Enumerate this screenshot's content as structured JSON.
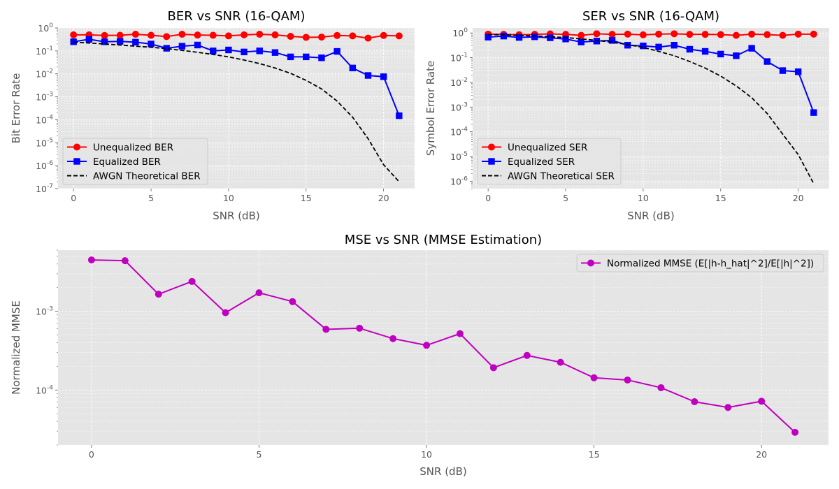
{
  "chart_data": [
    {
      "type": "line",
      "title": "BER vs SNR (16-QAM)",
      "xlabel": "SNR (dB)",
      "ylabel": "Bit Error Rate",
      "yscale": "log",
      "xlim": [
        -1,
        22
      ],
      "ylim": [
        1e-07,
        1
      ],
      "xticks": [
        0,
        5,
        10,
        15,
        20
      ],
      "yticks": [
        1e-07,
        1e-06,
        1e-05,
        0.0001,
        0.001,
        0.01,
        0.1,
        1
      ],
      "legend_position": "lower-left",
      "grid": true,
      "series": [
        {
          "name": "Unequalized BER",
          "color": "#ff0000",
          "style": "solid",
          "marker": "circle",
          "x": [
            0,
            1,
            2,
            3,
            4,
            5,
            6,
            7,
            8,
            9,
            10,
            11,
            12,
            13,
            14,
            15,
            16,
            17,
            18,
            19,
            20,
            21
          ],
          "y": [
            0.5,
            0.5,
            0.47,
            0.48,
            0.53,
            0.48,
            0.42,
            0.53,
            0.49,
            0.48,
            0.45,
            0.5,
            0.53,
            0.5,
            0.43,
            0.39,
            0.4,
            0.47,
            0.45,
            0.36,
            0.47,
            0.45
          ]
        },
        {
          "name": "Equalized BER",
          "color": "#0000ff",
          "style": "solid",
          "marker": "square",
          "x": [
            0,
            1,
            2,
            3,
            4,
            5,
            6,
            7,
            8,
            9,
            10,
            11,
            12,
            13,
            14,
            15,
            16,
            17,
            18,
            19,
            20,
            21
          ],
          "y": [
            0.25,
            0.32,
            0.25,
            0.26,
            0.24,
            0.2,
            0.13,
            0.16,
            0.18,
            0.1,
            0.11,
            0.09,
            0.1,
            0.085,
            0.055,
            0.055,
            0.05,
            0.095,
            0.018,
            0.0085,
            0.0075,
            0.00015
          ]
        },
        {
          "name": "AWGN Theoretical BER",
          "color": "#000000",
          "style": "dashed",
          "marker": "none",
          "x": [
            0,
            1,
            2,
            3,
            4,
            5,
            6,
            7,
            8,
            9,
            10,
            11,
            12,
            13,
            14,
            15,
            16,
            17,
            18,
            19,
            20,
            21
          ],
          "y": [
            0.24,
            0.22,
            0.2,
            0.18,
            0.16,
            0.145,
            0.125,
            0.105,
            0.087,
            0.07,
            0.055,
            0.04,
            0.028,
            0.018,
            0.0105,
            0.0052,
            0.0022,
            0.00065,
            0.00013,
            1.5e-05,
            1.1e-06,
            2e-07
          ]
        }
      ]
    },
    {
      "type": "line",
      "title": "SER vs SNR (16-QAM)",
      "xlabel": "SNR (dB)",
      "ylabel": "Symbol Error Rate",
      "yscale": "log",
      "xlim": [
        -1,
        22
      ],
      "ylim": [
        5e-07,
        1.6
      ],
      "xticks": [
        0,
        5,
        10,
        15,
        20
      ],
      "yticks": [
        1e-06,
        1e-05,
        0.0001,
        0.001,
        0.01,
        0.1,
        1
      ],
      "legend_position": "lower-left",
      "grid": true,
      "series": [
        {
          "name": "Unequalized SER",
          "color": "#ff0000",
          "style": "solid",
          "marker": "circle",
          "x": [
            0,
            1,
            2,
            3,
            4,
            5,
            6,
            7,
            8,
            9,
            10,
            11,
            12,
            13,
            14,
            15,
            16,
            17,
            18,
            19,
            20,
            21
          ],
          "y": [
            0.9,
            0.88,
            0.85,
            0.88,
            0.92,
            0.88,
            0.8,
            0.93,
            0.88,
            0.9,
            0.84,
            0.9,
            0.93,
            0.88,
            0.88,
            0.86,
            0.8,
            0.9,
            0.86,
            0.8,
            0.9,
            0.9
          ]
        },
        {
          "name": "Equalized SER",
          "color": "#0000ff",
          "style": "solid",
          "marker": "square",
          "x": [
            0,
            1,
            2,
            3,
            4,
            5,
            6,
            7,
            8,
            9,
            10,
            11,
            12,
            13,
            14,
            15,
            16,
            17,
            18,
            19,
            20,
            21
          ],
          "y": [
            0.68,
            0.75,
            0.66,
            0.7,
            0.64,
            0.57,
            0.43,
            0.47,
            0.5,
            0.32,
            0.3,
            0.27,
            0.32,
            0.22,
            0.18,
            0.14,
            0.12,
            0.24,
            0.07,
            0.03,
            0.027,
            0.0006
          ]
        },
        {
          "name": "AWGN Theoretical SER",
          "color": "#000000",
          "style": "dashed",
          "marker": "none",
          "x": [
            0,
            1,
            2,
            3,
            4,
            5,
            6,
            7,
            8,
            9,
            10,
            11,
            12,
            13,
            14,
            15,
            16,
            17,
            18,
            19,
            20,
            21
          ],
          "y": [
            0.87,
            0.84,
            0.8,
            0.76,
            0.71,
            0.65,
            0.58,
            0.5,
            0.42,
            0.34,
            0.26,
            0.18,
            0.12,
            0.07,
            0.038,
            0.018,
            0.0072,
            0.0024,
            0.00055,
            8e-05,
            1.2e-05,
            8e-07
          ]
        }
      ]
    },
    {
      "type": "line",
      "title": "MSE vs SNR (MMSE Estimation)",
      "xlabel": "SNR (dB)",
      "ylabel": "Normalized MMSE",
      "yscale": "log",
      "xlim": [
        -1,
        22
      ],
      "ylim": [
        2e-05,
        0.006
      ],
      "xticks": [
        0,
        5,
        10,
        15,
        20
      ],
      "yticks": [
        0.0001,
        0.001
      ],
      "legend_position": "upper-right",
      "grid": true,
      "series": [
        {
          "name": "Normalized MMSE (E[|h-h_hat|^2]/E[|h|^2])",
          "color": "#bf00bf",
          "style": "solid",
          "marker": "circle",
          "x": [
            0,
            1,
            2,
            3,
            4,
            5,
            6,
            7,
            8,
            9,
            10,
            11,
            12,
            13,
            14,
            15,
            16,
            17,
            18,
            19,
            20,
            21
          ],
          "y": [
            0.0045,
            0.0044,
            0.00165,
            0.0024,
            0.00096,
            0.00172,
            0.00133,
            0.00059,
            0.00061,
            0.00045,
            0.00037,
            0.00052,
            0.000192,
            0.000275,
            0.000225,
            0.000143,
            0.000134,
            0.000107,
            7.1e-05,
            6e-05,
            7.2e-05,
            2.9e-05
          ]
        }
      ]
    }
  ]
}
